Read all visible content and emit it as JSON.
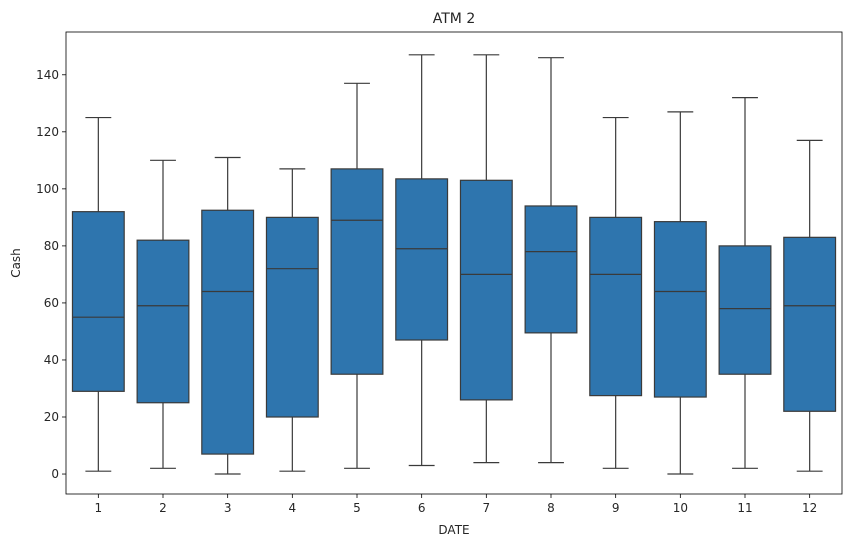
{
  "chart_data": {
    "type": "box",
    "title": "ATM 2",
    "xlabel": "DATE",
    "ylabel": "Cash",
    "ylim": [
      -7,
      155
    ],
    "yticks": [
      0,
      20,
      40,
      60,
      80,
      100,
      120,
      140
    ],
    "grid": false,
    "legend": "none",
    "box_color": "#2e75ae",
    "line_color": "#3a3a3a",
    "categories": [
      "1",
      "2",
      "3",
      "4",
      "5",
      "6",
      "7",
      "8",
      "9",
      "10",
      "11",
      "12"
    ],
    "boxes": [
      {
        "category": "1",
        "whisker_low": 1,
        "q1": 29,
        "median": 55,
        "q3": 92,
        "whisker_high": 125
      },
      {
        "category": "2",
        "whisker_low": 2,
        "q1": 25,
        "median": 59,
        "q3": 82,
        "whisker_high": 110
      },
      {
        "category": "3",
        "whisker_low": 0,
        "q1": 7,
        "median": 64,
        "q3": 92.5,
        "whisker_high": 111
      },
      {
        "category": "4",
        "whisker_low": 1,
        "q1": 20,
        "median": 72,
        "q3": 90,
        "whisker_high": 107
      },
      {
        "category": "5",
        "whisker_low": 2,
        "q1": 35,
        "median": 89,
        "q3": 107,
        "whisker_high": 137
      },
      {
        "category": "6",
        "whisker_low": 3,
        "q1": 47,
        "median": 79,
        "q3": 103.5,
        "whisker_high": 147
      },
      {
        "category": "7",
        "whisker_low": 4,
        "q1": 26,
        "median": 70,
        "q3": 103,
        "whisker_high": 147
      },
      {
        "category": "8",
        "whisker_low": 4,
        "q1": 49.5,
        "median": 78,
        "q3": 94,
        "whisker_high": 146
      },
      {
        "category": "9",
        "whisker_low": 2,
        "q1": 27.5,
        "median": 70,
        "q3": 90,
        "whisker_high": 125
      },
      {
        "category": "10",
        "whisker_low": 0,
        "q1": 27,
        "median": 64,
        "q3": 88.5,
        "whisker_high": 127
      },
      {
        "category": "11",
        "whisker_low": 2,
        "q1": 35,
        "median": 58,
        "q3": 80,
        "whisker_high": 132
      },
      {
        "category": "12",
        "whisker_low": 1,
        "q1": 22,
        "median": 59,
        "q3": 83,
        "whisker_high": 117
      }
    ]
  }
}
